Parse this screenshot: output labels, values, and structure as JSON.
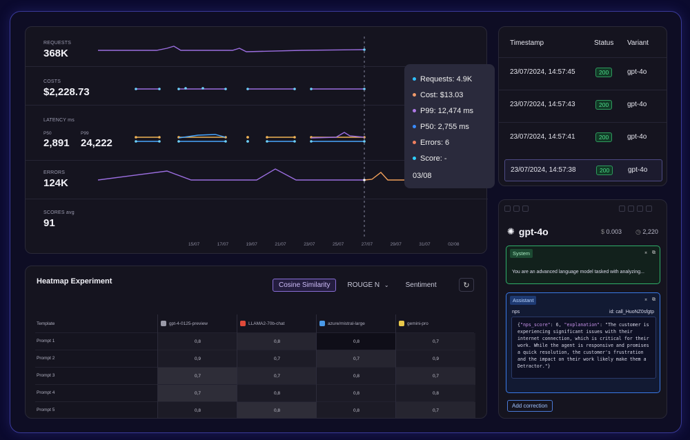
{
  "metrics": {
    "requests": {
      "label": "REQUESTS",
      "value": "368K"
    },
    "costs": {
      "label": "COSTS",
      "value": "$2,228.73"
    },
    "latency": {
      "label": "LATENCY ms",
      "p50_label": "P50",
      "p50_value": "2,891",
      "p99_label": "P99",
      "p99_value": "24,222"
    },
    "errors": {
      "label": "ERRORS",
      "value": "124K"
    },
    "scores": {
      "label": "SCORES avg",
      "value": "91"
    },
    "x_ticks": [
      "15/07",
      "17/07",
      "19/07",
      "21/07",
      "23/07",
      "25/07",
      "27/07",
      "29/07",
      "31/07",
      "02/08"
    ],
    "colors": {
      "line": "#9b6ee0",
      "dot": "#6fd3ff",
      "p99": "#f2b557",
      "p50": "#4aa8ff",
      "error_alt": "#f2a05a"
    }
  },
  "tooltip": {
    "items": [
      {
        "text": "Requests: 4.9K",
        "color": "#2fbfff"
      },
      {
        "text": "Cost: $13.03",
        "color": "#f09a6a"
      },
      {
        "text": "P99: 12,474 ms",
        "color": "#b07ae8"
      },
      {
        "text": "P50: 2,755 ms",
        "color": "#3a8cff"
      },
      {
        "text": "Errors: 6",
        "color": "#f08060"
      },
      {
        "text": "Score: -",
        "color": "#2fd0ff"
      }
    ],
    "date": "03/08"
  },
  "heatmap": {
    "title": "Heatmap Experiment",
    "tabs": [
      "Cosine Similarity",
      "ROUGE N",
      "Sentiment"
    ],
    "active_tab": "Cosine Similarity",
    "template_header": "Template",
    "models": [
      {
        "name": "gpt-4-0125-preview",
        "icon": "openai-icon",
        "color": "#9a9aa8"
      },
      {
        "name": "LLAMA2-70b-chat",
        "icon": "llama-icon",
        "color": "#e04a3a"
      },
      {
        "name": "azure/mistral-large",
        "icon": "azure-icon",
        "color": "#4a9ae8"
      },
      {
        "name": "gemini-pro",
        "icon": "google-icon",
        "color": "#e8c84a"
      }
    ],
    "rows": [
      {
        "label": "Prompt 1",
        "values": [
          "0,8",
          "0,8",
          "0,8",
          "0,7"
        ]
      },
      {
        "label": "Prompt 2",
        "values": [
          "0,9",
          "0,7",
          "0,7",
          "0,9"
        ]
      },
      {
        "label": "Prompt 3",
        "values": [
          "0,7",
          "0,7",
          "0,8",
          "0,7"
        ]
      },
      {
        "label": "Prompt 4",
        "values": [
          "0,7",
          "0,8",
          "0,8",
          "0,8"
        ]
      },
      {
        "label": "Prompt 5",
        "values": [
          "0,8",
          "0,8",
          "0,8",
          "0,7"
        ]
      }
    ]
  },
  "logs": {
    "headers": {
      "timestamp": "Timestamp",
      "status": "Status",
      "variant": "Variant"
    },
    "rows": [
      {
        "timestamp": "23/07/2024, 14:57:45",
        "status": "200",
        "variant": "gpt-4o"
      },
      {
        "timestamp": "23/07/2024, 14:57:43",
        "status": "200",
        "variant": "gpt-4o"
      },
      {
        "timestamp": "23/07/2024, 14:57:41",
        "status": "200",
        "variant": "gpt-4o"
      },
      {
        "timestamp": "23/07/2024, 14:57:38",
        "status": "200",
        "variant": "gpt-4o"
      }
    ]
  },
  "detail": {
    "model": "gpt-4o",
    "cost": "0.003",
    "duration": "2,220",
    "system_tag": "System",
    "system_text": "You are an advanced language model tasked with analyzing...",
    "assistant_tag": "Assistant",
    "tool_name": "nps",
    "tool_id": "id: call_HuoNZ0sfgtp",
    "code_text": "{\"nps_score\": 6, \"explanation\": \"The customer is experiencing significant issues with their internet connection, which is critical for their work. While the agent is responsive and promises a quick resolution, the customer's frustration and the impact on their work likely make them a Detractor.\"}",
    "add_correction": "Add correction"
  }
}
